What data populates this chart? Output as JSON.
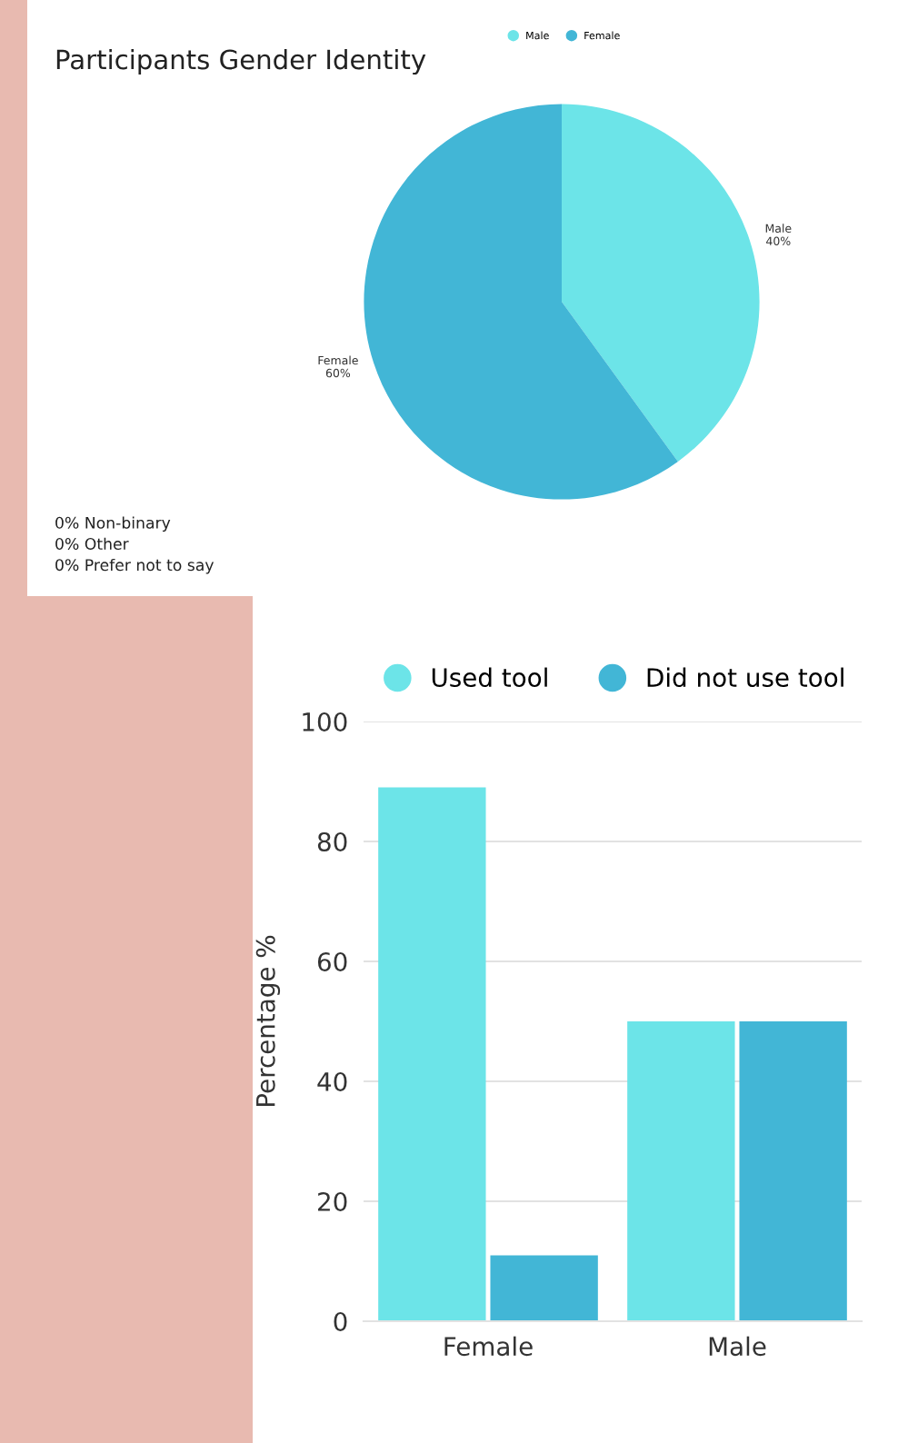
{
  "chart_data": [
    {
      "type": "pie",
      "title": "Participants Gender Identity",
      "categories": [
        "Male",
        "Female"
      ],
      "values": [
        40,
        60
      ],
      "colors": [
        "#6ce4e8",
        "#42b6d6"
      ],
      "value_labels": [
        "40%",
        "60%"
      ],
      "legend": "top",
      "annotations": [
        "0% Non-binary\n0% Other\n0% Prefer not to say"
      ]
    },
    {
      "type": "bar",
      "categories": [
        "Female",
        "Male"
      ],
      "ylabel": "Percentage %",
      "ylim": [
        0,
        100
      ],
      "yticks": [
        0,
        20,
        40,
        60,
        80,
        100
      ],
      "grid": "y",
      "legend": "top",
      "series": [
        {
          "name": "Used tool",
          "color": "#6ce4e8",
          "values": [
            89,
            50
          ]
        },
        {
          "name": "Did not use tool",
          "color": "#42b6d6",
          "values": [
            11,
            50
          ]
        }
      ]
    }
  ]
}
